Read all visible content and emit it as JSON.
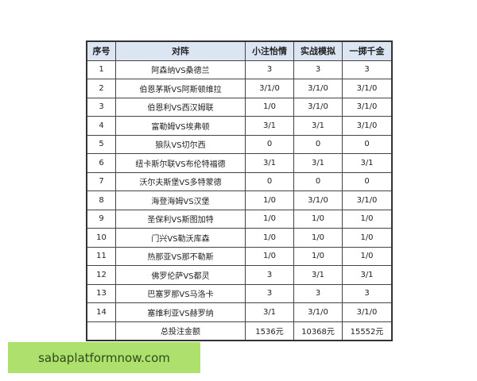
{
  "table": {
    "headers": [
      "序号",
      "对阵",
      "小注怡情",
      "实战模拟",
      "一掷千金"
    ],
    "rows": [
      [
        "1",
        "阿森纳VS桑德兰",
        "3",
        "3",
        "3"
      ],
      [
        "2",
        "伯恩茅斯VS阿斯顿维拉",
        "3/1/0",
        "3/1/0",
        "3/1/0"
      ],
      [
        "3",
        "伯恩利VS西汉姆联",
        "1/0",
        "3/1/0",
        "3/1/0"
      ],
      [
        "4",
        "富勒姆VS埃弗顿",
        "3/1",
        "3/1",
        "3/1/0"
      ],
      [
        "5",
        "狼队VS切尔西",
        "0",
        "0",
        "0"
      ],
      [
        "6",
        "纽卡斯尔联VS布伦特福德",
        "3/1",
        "3/1",
        "3/1"
      ],
      [
        "7",
        "沃尔夫斯堡VS多特蒙德",
        "0",
        "0",
        "0"
      ],
      [
        "8",
        "海登海姆VS汉堡",
        "1/0",
        "3/1/0",
        "3/1/0"
      ],
      [
        "9",
        "圣保利VS斯图加特",
        "1/0",
        "1/0",
        "1/0"
      ],
      [
        "10",
        "门兴VS勒沃库森",
        "1/0",
        "1/0",
        "1/0"
      ],
      [
        "11",
        "热那亚VS那不勒斯",
        "1/0",
        "1/0",
        "1/0"
      ],
      [
        "12",
        "佛罗伦萨VS都灵",
        "3",
        "3/1",
        "3/1"
      ],
      [
        "13",
        "巴塞罗那VS马洛卡",
        "3",
        "3",
        "3"
      ],
      [
        "14",
        "塞维利亚VS赫罗纳",
        "3/1",
        "3/1/0",
        "3/1/0"
      ]
    ],
    "total": [
      "",
      "总投注金额",
      "1536元",
      "10368元",
      "15552元"
    ]
  },
  "banner": {
    "text": "sabaplatformnow.com"
  }
}
